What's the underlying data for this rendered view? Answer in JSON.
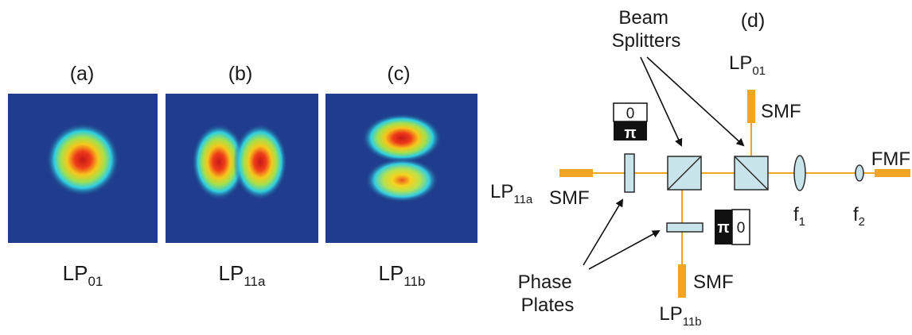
{
  "colors": {
    "beam": "#f2a522",
    "fiber": "#f2a522",
    "optic_fill": "#c9e3ea",
    "optic_stroke": "#2b2b2b",
    "mode_background": "#1f3d8c",
    "plate_dark": "#111111"
  },
  "panels": [
    {
      "letter": "(a)",
      "mode": {
        "base": "LP",
        "sub": "01"
      },
      "profile": "single-lobe"
    },
    {
      "letter": "(b)",
      "mode": {
        "base": "LP",
        "sub": "11a"
      },
      "profile": "two-lobe-horizontal"
    },
    {
      "letter": "(c)",
      "mode": {
        "base": "LP",
        "sub": "11b"
      },
      "profile": "two-lobe-vertical"
    }
  ],
  "setup": {
    "letter": "(d)",
    "beam_splitters": {
      "line1": "Beam",
      "line2": "Splitters"
    },
    "phase_plates": {
      "line1": "Phase",
      "line2": "Plates"
    },
    "inputs": {
      "lp01": {
        "base": "LP",
        "sub": "01",
        "fiber": "SMF"
      },
      "lp11a": {
        "base": "LP",
        "sub": "11a",
        "fiber": "SMF"
      },
      "lp11b": {
        "base": "LP",
        "sub": "11b",
        "fiber": "SMF"
      }
    },
    "plate_vertical": {
      "top": "0",
      "bottom": "π"
    },
    "plate_horizontal": {
      "left": "π",
      "right": "0"
    },
    "lens1": {
      "base": "f",
      "sub": "1"
    },
    "lens2": {
      "base": "f",
      "sub": "2"
    },
    "output_fiber": "FMF"
  }
}
